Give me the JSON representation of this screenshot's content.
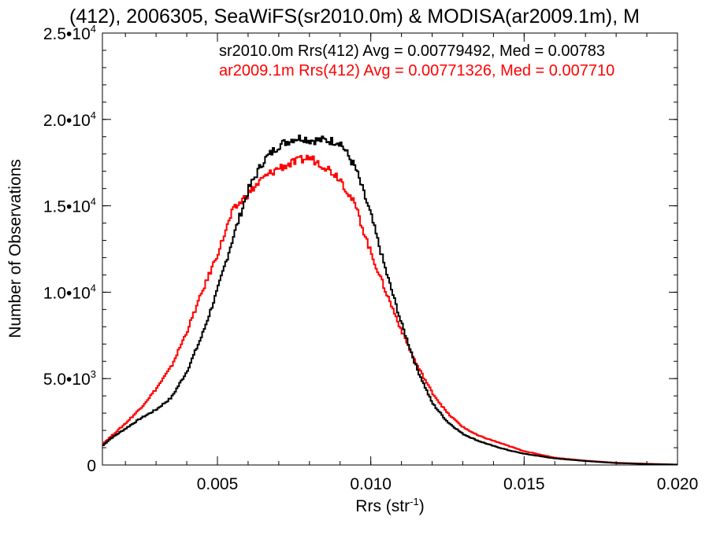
{
  "chart_data": {
    "type": "line",
    "title": "(412), 2006305, SeaWiFS(sr2010.0m) & MODISA(ar2009.1m), M",
    "xlabel": "Rrs (str",
    "xlabel_sup": "-1",
    "xlabel_end": ")",
    "ylabel": "Number of Observations",
    "xlim": [
      0.00125,
      0.02
    ],
    "ylim": [
      0,
      25000
    ],
    "x_ticks": [
      {
        "value": 0.005,
        "label": "0.005"
      },
      {
        "value": 0.01,
        "label": "0.010"
      },
      {
        "value": 0.015,
        "label": "0.015"
      },
      {
        "value": 0.02,
        "label": "0.020"
      }
    ],
    "y_ticks": [
      {
        "value": 0,
        "mant": "0",
        "exp": ""
      },
      {
        "value": 5000,
        "mant": "5.0•10",
        "exp": "3"
      },
      {
        "value": 10000,
        "mant": "1.0•10",
        "exp": "4"
      },
      {
        "value": 15000,
        "mant": "1.5•10",
        "exp": "4"
      },
      {
        "value": 20000,
        "mant": "2.0•10",
        "exp": "4"
      },
      {
        "value": 25000,
        "mant": "2.5•10",
        "exp": "4"
      }
    ],
    "grid": false,
    "legend_position": "top-right",
    "series": [
      {
        "name": "sr2010.0m",
        "annotation": "sr2010.0m Rrs(412) Avg = 0.00779492, Med = 0.00783",
        "color": "#000000",
        "x": [
          0.00125,
          0.0015,
          0.002,
          0.0025,
          0.003,
          0.0035,
          0.004,
          0.0045,
          0.005,
          0.0055,
          0.006,
          0.0065,
          0.007,
          0.0075,
          0.0078,
          0.008,
          0.0085,
          0.009,
          0.0095,
          0.01,
          0.0105,
          0.011,
          0.0115,
          0.012,
          0.0125,
          0.013,
          0.0135,
          0.014,
          0.0145,
          0.015,
          0.016,
          0.017,
          0.018,
          0.019,
          0.02
        ],
        "y": [
          1100,
          1500,
          2100,
          2700,
          3200,
          3900,
          5400,
          7500,
          10100,
          13100,
          15900,
          17600,
          18500,
          18900,
          18950,
          18800,
          18800,
          18700,
          17200,
          14500,
          11200,
          8200,
          5600,
          3600,
          2500,
          1800,
          1400,
          1100,
          850,
          650,
          380,
          230,
          110,
          60,
          20
        ]
      },
      {
        "name": "ar2009.1m",
        "annotation": "ar2009.1m Rrs(412) Avg = 0.00771326, Med = 0.007710",
        "color": "#ff0000",
        "x": [
          0.00125,
          0.0015,
          0.002,
          0.0025,
          0.003,
          0.0035,
          0.004,
          0.0045,
          0.005,
          0.0055,
          0.006,
          0.0065,
          0.007,
          0.0075,
          0.0078,
          0.008,
          0.0085,
          0.009,
          0.0095,
          0.01,
          0.0105,
          0.011,
          0.0115,
          0.012,
          0.0125,
          0.013,
          0.0135,
          0.014,
          0.0145,
          0.015,
          0.016,
          0.017,
          0.018,
          0.019,
          0.02
        ],
        "y": [
          1200,
          1600,
          2400,
          3300,
          4400,
          5700,
          7700,
          10000,
          12200,
          14700,
          15700,
          16600,
          17200,
          17500,
          17700,
          17800,
          17300,
          16600,
          15000,
          12300,
          10000,
          7800,
          5800,
          4200,
          3000,
          2200,
          1700,
          1400,
          1100,
          800,
          420,
          250,
          130,
          70,
          25
        ]
      }
    ]
  }
}
